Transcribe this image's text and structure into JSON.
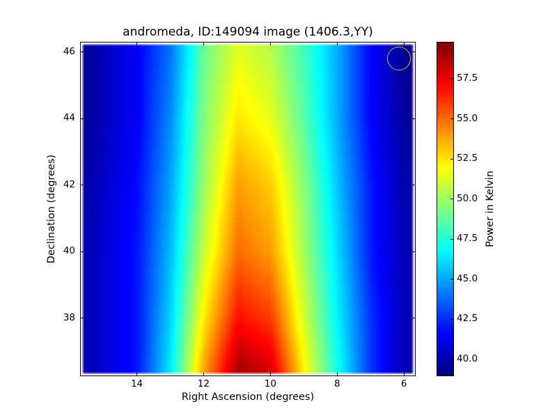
{
  "chart_data": {
    "type": "heatmap",
    "title": "andromeda, ID:149094 image (1406.3,YY)",
    "xlabel": "Right Ascension (degrees)",
    "ylabel": "Declination (degrees)",
    "colorbar_label": "Power in Kelvin",
    "colormap": "jet",
    "xlim": [
      15.7,
      5.65
    ],
    "ylim": [
      36.26,
      46.31
    ],
    "clim": [
      38.96,
      59.8
    ],
    "x_ticks": [
      14,
      12,
      10,
      8,
      6
    ],
    "x_tick_labels": [
      "14",
      "12",
      "10",
      "8",
      "6"
    ],
    "y_ticks": [
      38,
      40,
      42,
      44,
      46
    ],
    "y_tick_labels": [
      "38",
      "40",
      "42",
      "44",
      "46"
    ],
    "colorbar_ticks": [
      40.0,
      42.5,
      45.0,
      47.5,
      50.0,
      52.5,
      55.0,
      57.5
    ],
    "colorbar_tick_labels": [
      "40.0",
      "42.5",
      "45.0",
      "47.5",
      "50.0",
      "52.5",
      "55.0",
      "57.5"
    ],
    "grid_x": [
      15.5,
      14,
      13,
      12,
      11,
      10,
      9,
      8,
      7,
      6
    ],
    "grid_y": [
      46,
      44,
      42,
      40,
      38,
      36.5
    ],
    "values": [
      [
        39.5,
        41.5,
        44.0,
        49.0,
        51.5,
        50.5,
        48.0,
        45.0,
        41.5,
        39.3
      ],
      [
        39.5,
        41.5,
        44.5,
        49.5,
        52.5,
        51.5,
        48.5,
        45.0,
        41.5,
        39.5
      ],
      [
        39.8,
        41.8,
        45.0,
        50.0,
        54.0,
        53.0,
        49.5,
        45.5,
        42.0,
        39.8
      ],
      [
        40.0,
        42.0,
        45.5,
        51.0,
        55.0,
        54.0,
        50.0,
        46.0,
        42.0,
        40.0
      ],
      [
        40.0,
        42.0,
        46.0,
        52.5,
        57.0,
        56.0,
        51.0,
        46.5,
        42.5,
        40.0
      ],
      [
        40.0,
        42.0,
        46.5,
        54.0,
        59.0,
        58.0,
        52.0,
        47.0,
        42.5,
        40.0
      ]
    ],
    "beam_marker": {
      "ra": 6.15,
      "dec": 45.8,
      "color": "#c8c020"
    },
    "grid": false
  }
}
